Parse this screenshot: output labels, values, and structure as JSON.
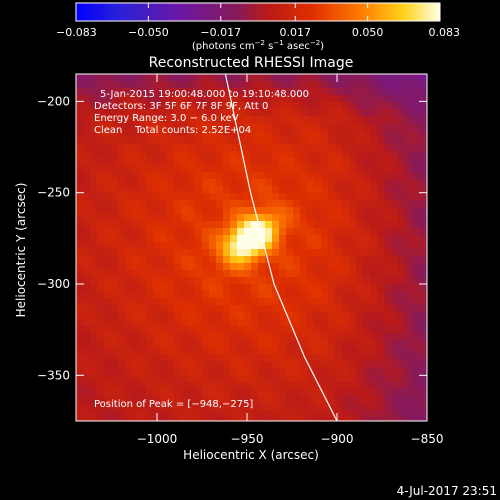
{
  "chart_data": {
    "type": "heatmap",
    "title": "Reconstructed RHESSI Image",
    "xlabel": "Heliocentric X (arcsec)",
    "ylabel": "Heliocentric Y (arcsec)",
    "xlim": [
      -1045,
      -850
    ],
    "ylim": [
      -375,
      -185
    ],
    "x_ticks": [
      {
        "value": -1000,
        "label": "−1000"
      },
      {
        "value": -950,
        "label": "−950"
      },
      {
        "value": -900,
        "label": "−900"
      },
      {
        "value": -850,
        "label": "−850"
      }
    ],
    "y_ticks": [
      {
        "value": -200,
        "label": "−200"
      },
      {
        "value": -250,
        "label": "−250"
      },
      {
        "value": -300,
        "label": "−300"
      },
      {
        "value": -350,
        "label": "−350"
      }
    ],
    "colorbar": {
      "range": [
        -0.083,
        0.083
      ],
      "ticks": [
        {
          "value": -0.083,
          "label": "−0.083"
        },
        {
          "value": -0.05,
          "label": "−0.050"
        },
        {
          "value": -0.017,
          "label": "−0.017"
        },
        {
          "value": 0.017,
          "label": "0.017"
        },
        {
          "value": 0.05,
          "label": "0.050"
        },
        {
          "value": 0.083,
          "label": "0.083"
        }
      ],
      "unit_prefix": "(photons cm",
      "unit_exp1": "−2",
      "unit_mid1": " s",
      "unit_exp2": "−1",
      "unit_mid2": " asec",
      "unit_exp3": "−2",
      "unit_suffix": ")"
    },
    "source": {
      "peak_x": -948,
      "peak_y": -275,
      "peak_value": 0.083
    },
    "limb_curve": [
      [
        -962,
        -185
      ],
      [
        -948,
        -250
      ],
      [
        -935,
        -300
      ],
      [
        -918,
        -340
      ],
      [
        -900,
        -375
      ]
    ],
    "info_lines": [
      "5-Jan-2015 19:00:48.000 to 19:10:48.000",
      "Detectors: 3F 5F 6F 7F 8F 9F, Att 0",
      "Energy Range: 3.0 − 6.0 keV",
      "Clean    Total counts: 2.52E+04"
    ],
    "peak_text": "Position of Peak = [−948,−275]",
    "timestamp": "4-Jul-2017 23:51"
  }
}
